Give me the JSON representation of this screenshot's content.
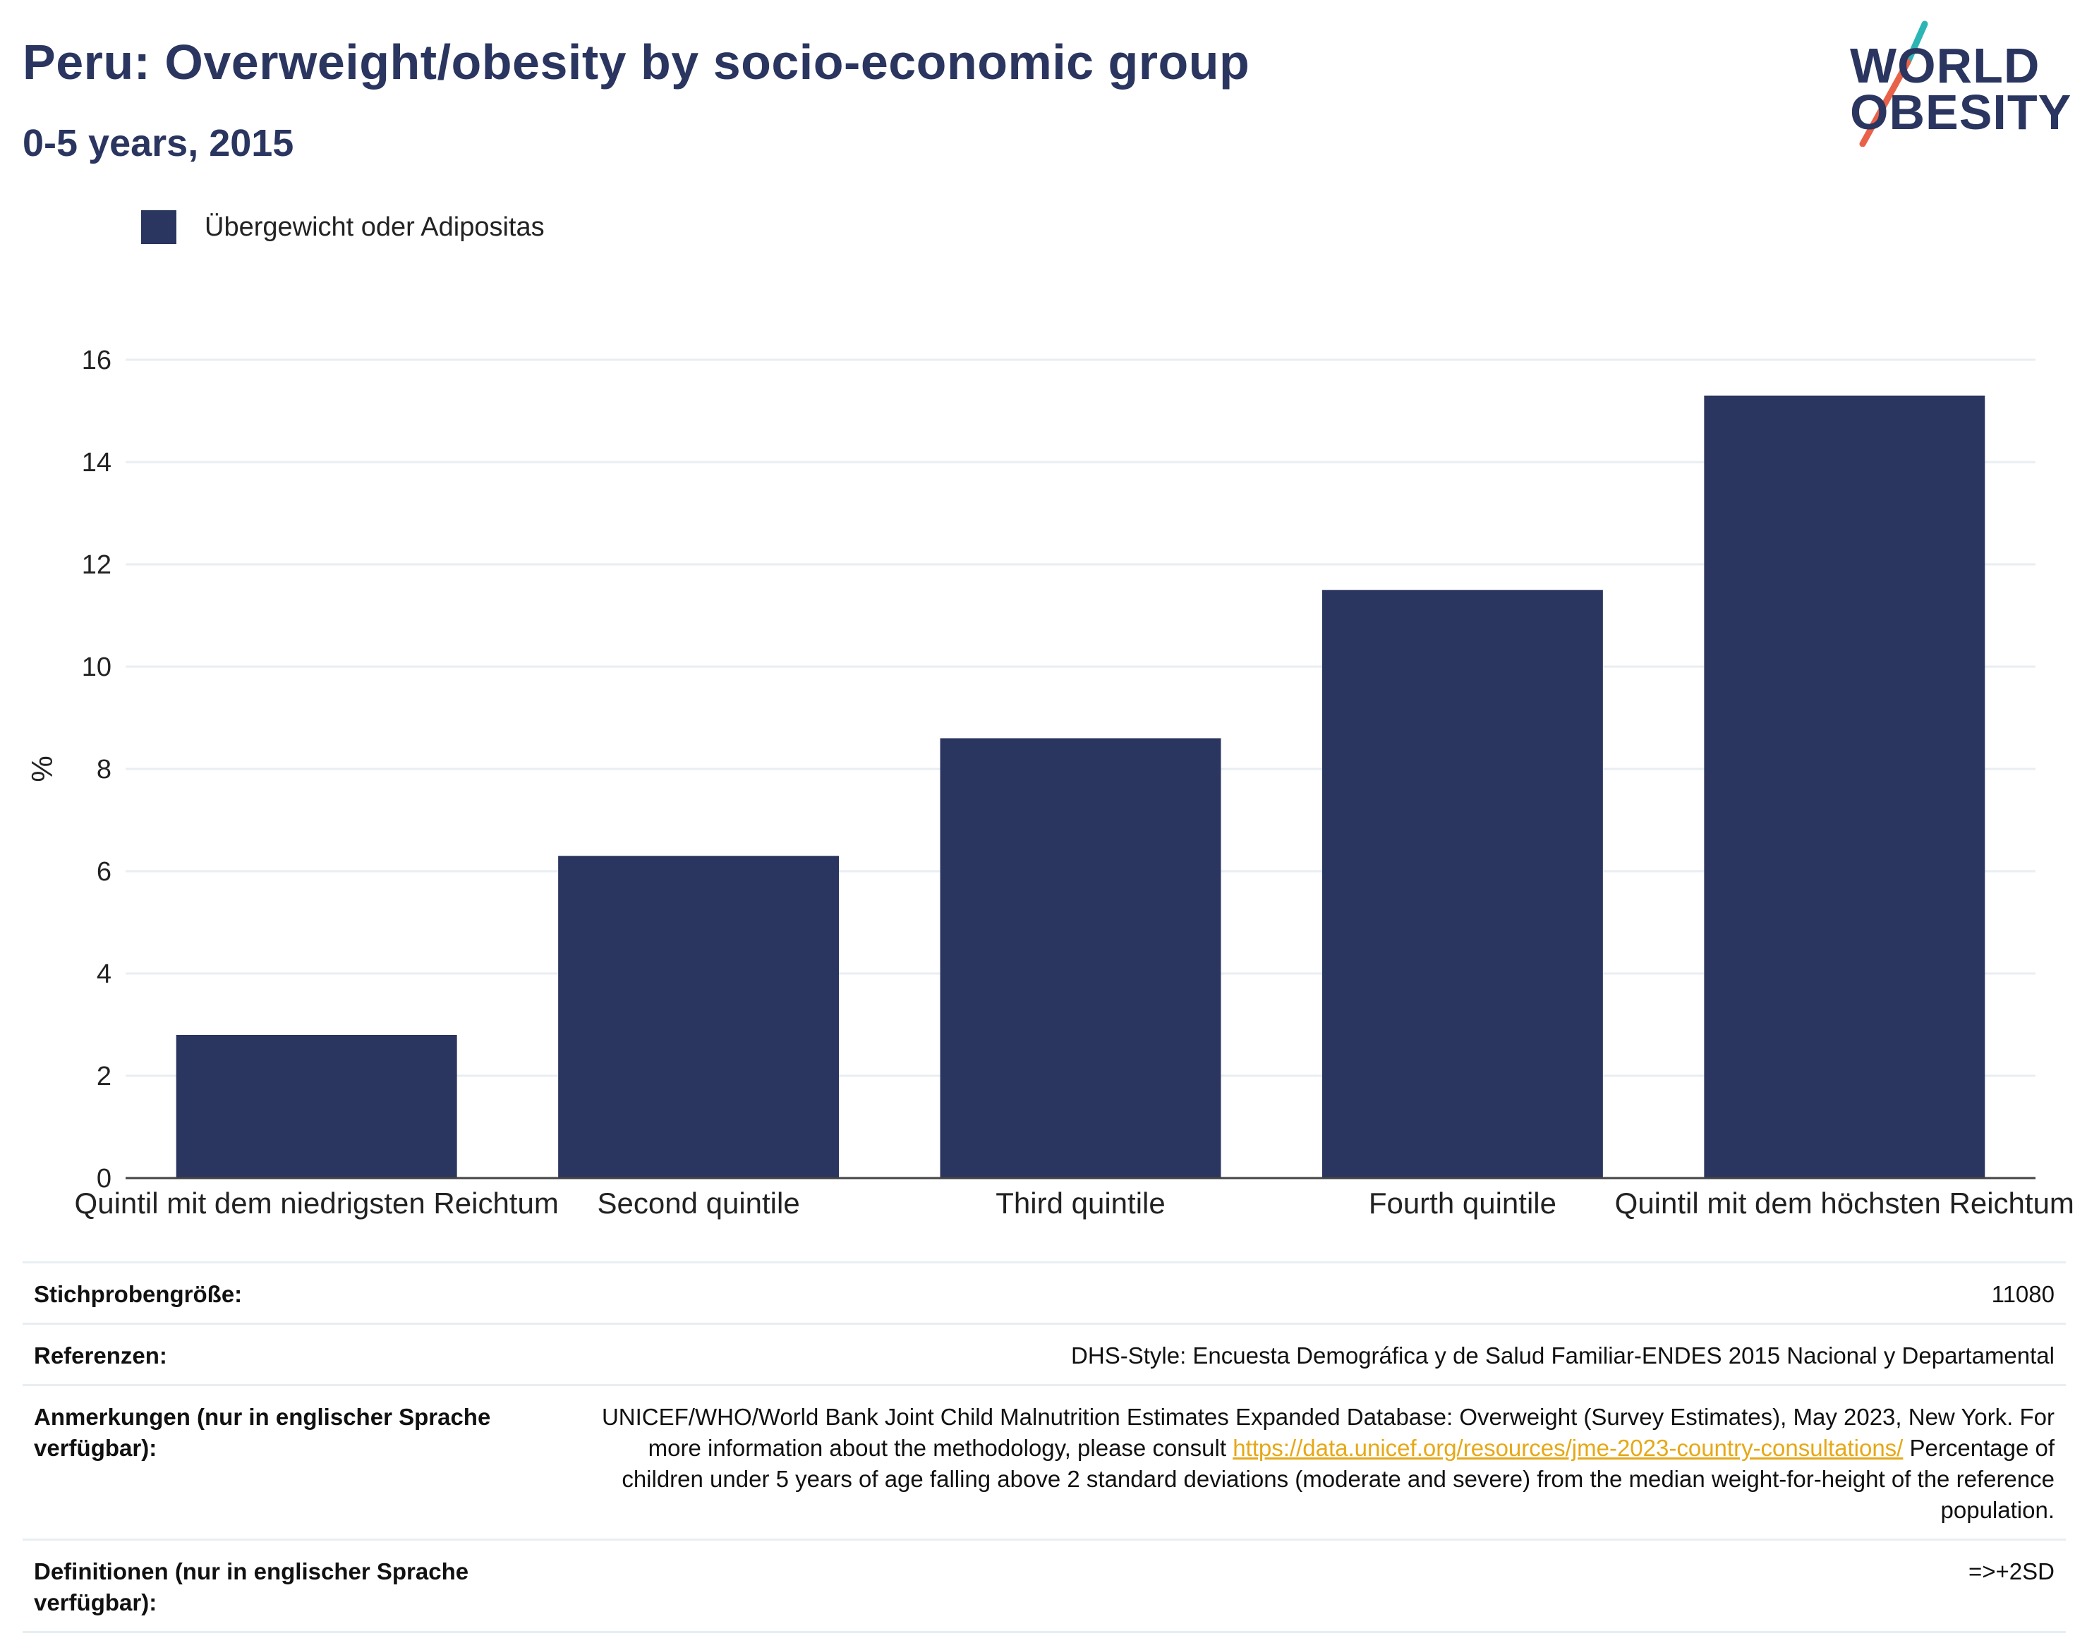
{
  "header": {
    "title": "Peru: Overweight/obesity by socio-economic group",
    "subtitle": "0-5 years, 2015"
  },
  "logo": {
    "line1": "WORLD",
    "line2": "OBESITY",
    "colors": {
      "text": "#2a3560",
      "slash_top": "#2cb5b5",
      "slash_bottom": "#e8624a"
    }
  },
  "legend": {
    "label": "Übergewicht oder Adipositas",
    "color": "#2a3560"
  },
  "chart_data": {
    "type": "bar",
    "categories": [
      "Quintil mit dem niedrigsten Reichtum",
      "Second quintile",
      "Third quintile",
      "Fourth quintile",
      "Quintil mit dem höchsten Reichtum"
    ],
    "series": [
      {
        "name": "Übergewicht oder Adipositas",
        "values": [
          2.8,
          6.3,
          8.6,
          11.5,
          15.3
        ],
        "color": "#2a3560"
      }
    ],
    "ylabel": "%",
    "xlabel": "",
    "ylim": [
      0,
      16
    ],
    "yticks": [
      0,
      2,
      4,
      6,
      8,
      10,
      12,
      14,
      16
    ],
    "grid": true,
    "legend_position": "top-left"
  },
  "meta": {
    "sample_size": {
      "key": "Stichprobengröße:",
      "value": "11080"
    },
    "references": {
      "key": "Referenzen:",
      "value": "DHS-Style: Encuesta Demográfica y de Salud Familiar-ENDES 2015 Nacional y Departamental"
    },
    "notes": {
      "key": "Anmerkungen (nur in englischer Sprache verfügbar):",
      "text_before": "UNICEF/WHO/World Bank Joint Child Malnutrition Estimates Expanded Database: Overweight (Survey Estimates), May 2023, New York. For more information about the methodology, please consult ",
      "link": "https://data.unicef.org/resources/jme-2023-country-consultations/",
      "text_after": " Percentage of children under 5 years of age falling above 2 standard deviations (moderate and severe) from the median weight-for-height of the reference population."
    },
    "definitions": {
      "key": "Definitionen (nur in englischer Sprache verfügbar):",
      "value": "=>+2SD"
    }
  }
}
